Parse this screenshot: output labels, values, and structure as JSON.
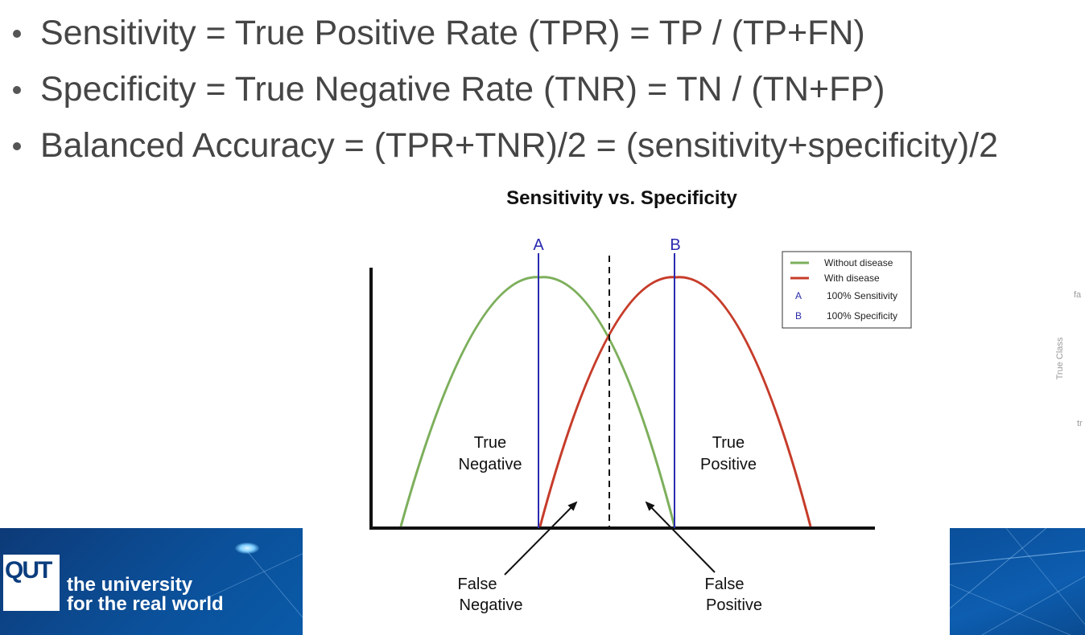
{
  "bullets": [
    "Sensitivity = True Positive Rate (TPR) = TP / (TP+FN)",
    "Specificity = True Negative Rate (TNR) = TN / (TN+FP)",
    "Balanced Accuracy = (TPR+TNR)/2 = (sensitivity+specificity)/2"
  ],
  "diagram": {
    "title": "Sensitivity vs. Specificity",
    "marker_a": "A",
    "marker_b": "B",
    "region_true_negative": [
      "True",
      "Negative"
    ],
    "region_true_positive": [
      "True",
      "Positive"
    ],
    "region_false_negative": [
      "False",
      "Negative"
    ],
    "region_false_positive": [
      "False",
      "Positive"
    ],
    "legend": {
      "items": [
        {
          "symbol": "line",
          "color": "#7daf5c",
          "label": "Without disease"
        },
        {
          "symbol": "line",
          "color": "#c63c2a",
          "label": "With disease"
        },
        {
          "symbol": "A",
          "color": "#2a2aa8",
          "label": "100% Sensitivity"
        },
        {
          "symbol": "B",
          "color": "#2a2aa8",
          "label": "100% Specificity"
        }
      ]
    },
    "colors": {
      "without_disease": "#7daf5c",
      "with_disease": "#c63c2a",
      "threshold_lines": "#2a2ab0",
      "axes": "#111111"
    }
  },
  "branding": {
    "logo_text": "QUT",
    "tagline_line1": "the university",
    "tagline_line2": "for the real world"
  },
  "side_fragments": {
    "top": "fa",
    "axis_label": "True Class",
    "bottom": "tr"
  }
}
